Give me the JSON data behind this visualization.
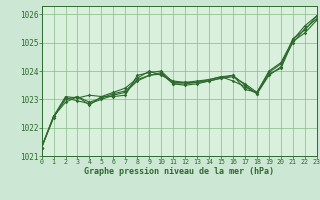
{
  "title": "Graphe pression niveau de la mer (hPa)",
  "x_labels": [
    "0",
    "1",
    "2",
    "3",
    "4",
    "5",
    "6",
    "7",
    "8",
    "9",
    "10",
    "11",
    "12",
    "13",
    "14",
    "15",
    "16",
    "17",
    "18",
    "19",
    "20",
    "21",
    "22",
    "23"
  ],
  "ylim": [
    1021.0,
    1026.3
  ],
  "xlim": [
    0,
    23
  ],
  "yticks": [
    1021,
    1022,
    1023,
    1024,
    1025,
    1026
  ],
  "bg_color": "#cce8d4",
  "plot_bg_color": "#d8f0dc",
  "grid_color": "#88bb88",
  "line_color": "#2d6a2d",
  "series": [
    [
      1021.3,
      1022.4,
      1022.9,
      1023.1,
      1022.8,
      1023.1,
      1023.1,
      1023.15,
      1023.85,
      1023.95,
      1024.0,
      1023.6,
      1023.6,
      1023.6,
      1023.7,
      1023.8,
      1023.85,
      1023.35,
      1023.25,
      1024.0,
      1024.3,
      1025.1,
      1025.6,
      1025.95
    ],
    [
      1021.3,
      1022.4,
      1023.0,
      1023.1,
      1022.9,
      1023.05,
      1023.2,
      1023.3,
      1023.7,
      1023.85,
      1023.95,
      1023.55,
      1023.55,
      1023.6,
      1023.65,
      1023.75,
      1023.8,
      1023.55,
      1023.25,
      1023.95,
      1024.25,
      1025.0,
      1025.5,
      1025.85
    ],
    [
      1021.3,
      1022.4,
      1023.1,
      1023.05,
      1023.15,
      1023.1,
      1023.25,
      1023.4,
      1023.75,
      1024.0,
      1023.85,
      1023.65,
      1023.6,
      1023.65,
      1023.7,
      1023.8,
      1023.65,
      1023.45,
      1023.2,
      1023.85,
      1024.15,
      1025.15,
      1025.45,
      1025.95
    ],
    [
      1021.3,
      1022.35,
      1023.05,
      1022.95,
      1022.85,
      1023.0,
      1023.15,
      1023.25,
      1023.65,
      1023.85,
      1023.9,
      1023.55,
      1023.5,
      1023.55,
      1023.65,
      1023.75,
      1023.85,
      1023.5,
      1023.2,
      1023.9,
      1024.1,
      1025.05,
      1025.35,
      1025.8
    ]
  ]
}
